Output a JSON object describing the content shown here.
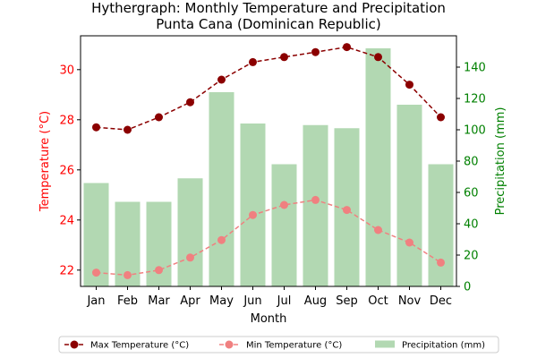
{
  "chart_data": {
    "type": "bar-line-combo",
    "title": "Hythergraph: Monthly Temperature and Precipitation",
    "subtitle": "Punta Cana (Dominican Republic)",
    "xlabel": "Month",
    "ylabel_left": "Temperature (°C)",
    "ylabel_right": "Precipitation (mm)",
    "categories": [
      "Jan",
      "Feb",
      "Mar",
      "Apr",
      "May",
      "Jun",
      "Jul",
      "Aug",
      "Sep",
      "Oct",
      "Nov",
      "Dec"
    ],
    "ylim_left": [
      21.35,
      31.35
    ],
    "ylim_right": [
      0,
      160
    ],
    "yticks_left": [
      22,
      24,
      26,
      28,
      30
    ],
    "yticks_right": [
      0,
      20,
      40,
      60,
      80,
      100,
      120,
      140
    ],
    "series": [
      {
        "name": "Max Temperature (°C)",
        "kind": "line",
        "axis": "left",
        "color": "#8b0000",
        "style": "dashed",
        "marker": "circle",
        "values": [
          27.7,
          27.6,
          28.1,
          28.7,
          29.6,
          30.3,
          30.5,
          30.7,
          30.9,
          30.5,
          29.4,
          28.1
        ]
      },
      {
        "name": "Min Temperature (°C)",
        "kind": "line",
        "axis": "left",
        "color": "#f08080",
        "style": "dashed",
        "marker": "circle",
        "values": [
          21.9,
          21.8,
          22.0,
          22.5,
          23.2,
          24.2,
          24.6,
          24.8,
          24.4,
          23.6,
          23.1,
          22.3
        ]
      },
      {
        "name": "Precipitation (mm)",
        "kind": "bar",
        "axis": "right",
        "color": "#b2d8b2",
        "values": [
          66,
          54,
          54,
          69,
          124,
          104,
          78,
          103,
          101,
          152,
          116,
          78
        ]
      }
    ],
    "colors": {
      "left_axis": "#ff0000",
      "right_axis": "#008000",
      "axis": "#000000"
    },
    "grid": false,
    "legend_position": "bottom"
  }
}
